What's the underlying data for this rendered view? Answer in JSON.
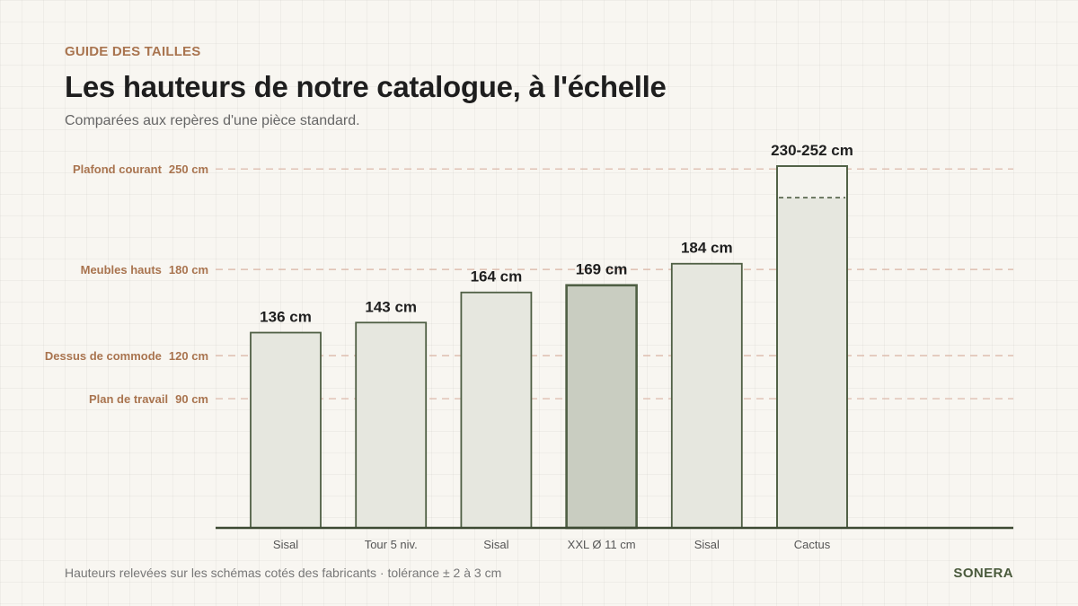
{
  "header": {
    "eyebrow": "GUIDE DES TAILLES",
    "title": "Les hauteurs de notre catalogue, à l'échelle",
    "subtitle": "Comparées aux repères d'une pièce standard."
  },
  "footer": {
    "note": "Hauteurs relevées sur les schémas cotés des fabricants · tolérance ± 2 à 3 cm",
    "brand": "SONERA"
  },
  "colors": {
    "accent": "#a9744f",
    "bar_fill": "#e6e7df",
    "bar_fill_highlight": "#c9cdc1",
    "bar_stroke": "#4f5f44",
    "axis": "#3d4a33",
    "ref_line": "#d9b3a3",
    "brand": "#4a5a3c"
  },
  "chart_data": {
    "type": "bar",
    "categories": [
      "Sisal",
      "Tour 5 niv.",
      "Sisal",
      "XXL Ø 11 cm",
      "Sisal",
      "Cactus"
    ],
    "values": [
      136,
      143,
      164,
      169,
      184,
      252
    ],
    "ranges": [
      null,
      null,
      null,
      null,
      null,
      [
        230,
        252
      ]
    ],
    "value_labels": [
      "136 cm",
      "143 cm",
      "164 cm",
      "169 cm",
      "184 cm",
      "230-252 cm"
    ],
    "highlight_index": 3,
    "ylim": [
      0,
      252
    ],
    "grid": false,
    "reference_lines": [
      {
        "label": "Plafond courant",
        "value_label": "250 cm",
        "value": 250
      },
      {
        "label": "Meubles hauts",
        "value_label": "180 cm",
        "value": 180
      },
      {
        "label": "Dessus de commode",
        "value_label": "120 cm",
        "value": 120
      },
      {
        "label": "Plan de travail",
        "value_label": "90 cm",
        "value": 90
      }
    ]
  }
}
